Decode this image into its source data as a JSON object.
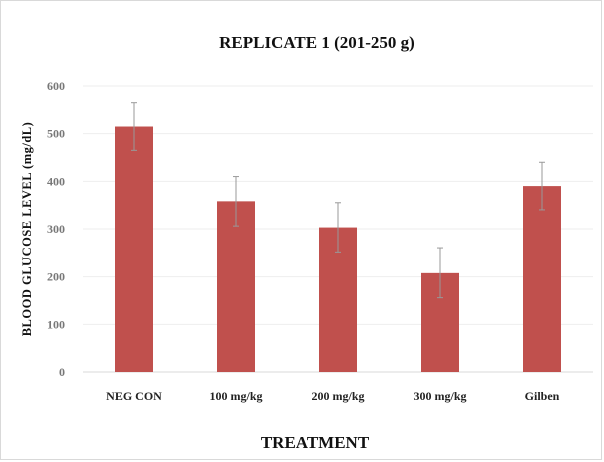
{
  "chart_data": {
    "type": "bar",
    "title": "REPLICATE 1 (201-250 g)",
    "xlabel": "TREATMENT",
    "ylabel": "BLOOD GLUCOSE LEVEL (mg/dL)",
    "categories": [
      "NEG CON",
      "100 mg/kg",
      "200 mg/kg",
      "300 mg/kg",
      "Gilben"
    ],
    "values": [
      515,
      358,
      303,
      208,
      390
    ],
    "errors": [
      50,
      52,
      52,
      52,
      50
    ],
    "ylim": [
      0,
      600
    ],
    "yticks": [
      0,
      100,
      200,
      300,
      400,
      500,
      600
    ],
    "grid": true,
    "bar_color": "#c0504d",
    "error_color": "#999999",
    "grid_color": "#eeeeee",
    "axis_color": "#d9d9d9"
  }
}
